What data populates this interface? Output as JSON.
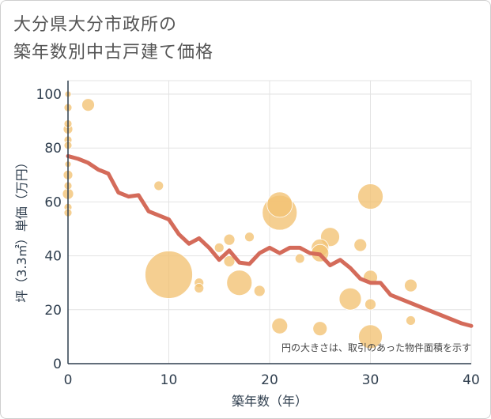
{
  "title": {
    "line1": "大分県大分市政所の",
    "line2": "築年数別中古戸建て価格"
  },
  "chart_data": {
    "type": "scatter",
    "xlabel": "築年数（年）",
    "ylabel": "坪（3.3㎡）単価（万円）",
    "xlim": [
      0,
      40
    ],
    "ylim": [
      0,
      105
    ],
    "x_ticks": [
      "0",
      "10",
      "20",
      "30",
      "40"
    ],
    "y_ticks": [
      "0",
      "20",
      "40",
      "60",
      "80",
      "100"
    ],
    "note": "円の大きさは、取引のあった物件面積を示す",
    "grid": true,
    "colors": {
      "bubble": "#f2c172",
      "trend": "#d46b5a",
      "grid": "#e3e3e3",
      "axis": "#2f3e4e"
    },
    "points": [
      {
        "x": 0,
        "y": 100,
        "s": 4
      },
      {
        "x": 0,
        "y": 95,
        "s": 5
      },
      {
        "x": 0,
        "y": 89,
        "s": 5
      },
      {
        "x": 0,
        "y": 87,
        "s": 6
      },
      {
        "x": 0,
        "y": 83,
        "s": 5
      },
      {
        "x": 0,
        "y": 81,
        "s": 5
      },
      {
        "x": 0,
        "y": 74,
        "s": 4
      },
      {
        "x": 0,
        "y": 70,
        "s": 6
      },
      {
        "x": 0,
        "y": 66,
        "s": 5
      },
      {
        "x": 0,
        "y": 63,
        "s": 7
      },
      {
        "x": 0,
        "y": 58,
        "s": 5
      },
      {
        "x": 0,
        "y": 56,
        "s": 5
      },
      {
        "x": 2,
        "y": 96,
        "s": 8
      },
      {
        "x": 9,
        "y": 66,
        "s": 6
      },
      {
        "x": 10,
        "y": 33,
        "s": 30
      },
      {
        "x": 13,
        "y": 30,
        "s": 6
      },
      {
        "x": 13,
        "y": 28,
        "s": 6
      },
      {
        "x": 15,
        "y": 43,
        "s": 6
      },
      {
        "x": 16,
        "y": 46,
        "s": 7
      },
      {
        "x": 16,
        "y": 38,
        "s": 7
      },
      {
        "x": 17,
        "y": 30,
        "s": 16
      },
      {
        "x": 18,
        "y": 47,
        "s": 6
      },
      {
        "x": 19,
        "y": 27,
        "s": 7
      },
      {
        "x": 21,
        "y": 59,
        "s": 16
      },
      {
        "x": 21,
        "y": 56,
        "s": 22
      },
      {
        "x": 21,
        "y": 14,
        "s": 10
      },
      {
        "x": 23,
        "y": 39,
        "s": 6
      },
      {
        "x": 25,
        "y": 43,
        "s": 11
      },
      {
        "x": 25,
        "y": 41,
        "s": 11
      },
      {
        "x": 25,
        "y": 13,
        "s": 9
      },
      {
        "x": 26,
        "y": 47,
        "s": 12
      },
      {
        "x": 28,
        "y": 24,
        "s": 14
      },
      {
        "x": 29,
        "y": 44,
        "s": 8
      },
      {
        "x": 30,
        "y": 62,
        "s": 16
      },
      {
        "x": 30,
        "y": 32,
        "s": 9
      },
      {
        "x": 30,
        "y": 22,
        "s": 7
      },
      {
        "x": 30,
        "y": 10,
        "s": 15
      },
      {
        "x": 34,
        "y": 29,
        "s": 8
      },
      {
        "x": 34,
        "y": 16,
        "s": 6
      }
    ],
    "trend": {
      "x": [
        0,
        1,
        2,
        3,
        4,
        5,
        6,
        7,
        8,
        9,
        10,
        11,
        12,
        13,
        14,
        15,
        16,
        17,
        18,
        19,
        20,
        21,
        22,
        23,
        24,
        25,
        26,
        27,
        28,
        29,
        30,
        31,
        32,
        33,
        34,
        35,
        36,
        37,
        38,
        39,
        40
      ],
      "y": [
        77,
        76,
        74.5,
        72,
        70.5,
        63.5,
        62,
        62.5,
        56.5,
        55,
        53.5,
        48,
        44.5,
        46.5,
        43,
        38.5,
        42,
        37.5,
        37,
        41,
        43,
        41,
        43,
        43,
        41,
        40.5,
        36.5,
        38.5,
        35.5,
        31.5,
        30,
        30,
        25.5,
        24,
        22.5,
        21,
        19.5,
        18,
        16.5,
        15,
        14
      ]
    }
  }
}
